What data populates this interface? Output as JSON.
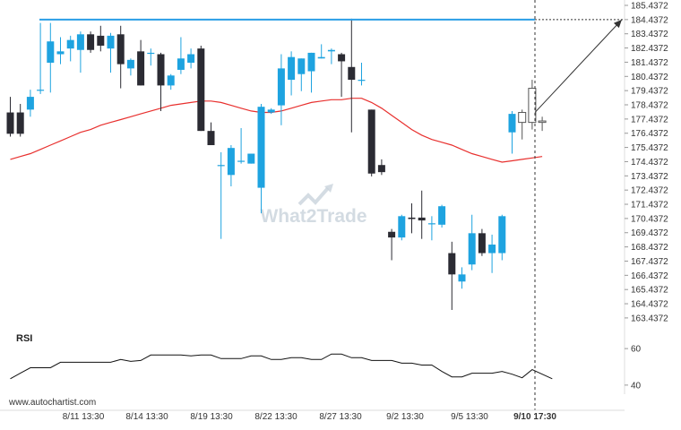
{
  "chart_data": [
    {
      "type": "candlestick",
      "x_labels": [
        "8/11 13:30",
        "8/14 13:30",
        "8/19 13:30",
        "8/22 13:30",
        "8/27 13:30",
        "9/2 13:30",
        "9/5 13:30",
        "9/10 17:30"
      ],
      "y_tick_labels": [
        "185.4372",
        "184.4372",
        "183.4372",
        "182.4372",
        "181.4372",
        "180.4372",
        "179.4372",
        "178.4372",
        "177.4372",
        "176.4372",
        "175.4372",
        "174.4372",
        "173.4372",
        "172.4372",
        "171.4372",
        "170.4372",
        "169.4372",
        "168.4372",
        "167.4372",
        "166.4372",
        "165.4372",
        "164.4372",
        "163.4372"
      ],
      "ylim": [
        162.99,
        185.5
      ],
      "resistance_level": 184.4372,
      "forecast_target": 184.4372,
      "candles": [
        {
          "o": 177.9,
          "h": 179.0,
          "l": 176.2,
          "c": 176.4
        },
        {
          "o": 177.9,
          "h": 178.5,
          "l": 176.2,
          "c": 176.4
        },
        {
          "o": 178.1,
          "h": 179.5,
          "l": 177.6,
          "c": 179.0
        },
        {
          "o": 179.5,
          "h": 184.2,
          "l": 179.2,
          "c": 179.5
        },
        {
          "o": 181.4,
          "h": 184.2,
          "l": 179.3,
          "c": 182.9
        },
        {
          "o": 182.0,
          "h": 183.2,
          "l": 181.3,
          "c": 182.2
        },
        {
          "o": 182.4,
          "h": 183.3,
          "l": 181.5,
          "c": 183.0
        },
        {
          "o": 182.3,
          "h": 183.6,
          "l": 180.7,
          "c": 183.4
        },
        {
          "o": 183.4,
          "h": 183.6,
          "l": 182.1,
          "c": 182.3
        },
        {
          "o": 183.3,
          "h": 184.0,
          "l": 182.2,
          "c": 182.6
        },
        {
          "o": 182.4,
          "h": 183.5,
          "l": 180.7,
          "c": 183.3
        },
        {
          "o": 183.4,
          "h": 184.0,
          "l": 179.6,
          "c": 181.3
        },
        {
          "o": 181.0,
          "h": 181.7,
          "l": 180.5,
          "c": 181.6
        },
        {
          "o": 182.2,
          "h": 183.0,
          "l": 179.8,
          "c": 179.8
        },
        {
          "o": 182.1,
          "h": 182.4,
          "l": 181.2,
          "c": 182.1
        },
        {
          "o": 182.0,
          "h": 182.1,
          "l": 178.0,
          "c": 179.8
        },
        {
          "o": 179.8,
          "h": 180.6,
          "l": 179.5,
          "c": 180.5
        },
        {
          "o": 180.9,
          "h": 183.2,
          "l": 180.6,
          "c": 181.7
        },
        {
          "o": 181.4,
          "h": 182.4,
          "l": 181.0,
          "c": 182.0
        },
        {
          "o": 182.4,
          "h": 182.6,
          "l": 176.6,
          "c": 176.6
        },
        {
          "o": 176.6,
          "h": 177.2,
          "l": 175.6,
          "c": 175.6
        },
        {
          "o": 174.2,
          "h": 175.1,
          "l": 169.0,
          "c": 174.2
        },
        {
          "o": 173.5,
          "h": 175.6,
          "l": 172.7,
          "c": 175.4
        },
        {
          "o": 174.5,
          "h": 176.8,
          "l": 174.3,
          "c": 174.5
        },
        {
          "o": 174.3,
          "h": 175.0,
          "l": 174.3,
          "c": 175.0
        },
        {
          "o": 172.6,
          "h": 178.5,
          "l": 170.8,
          "c": 178.3
        },
        {
          "o": 177.9,
          "h": 178.2,
          "l": 177.8,
          "c": 178.1
        },
        {
          "o": 178.4,
          "h": 182.0,
          "l": 177.0,
          "c": 181.0
        },
        {
          "o": 180.2,
          "h": 182.2,
          "l": 179.1,
          "c": 181.8
        },
        {
          "o": 180.6,
          "h": 181.7,
          "l": 179.4,
          "c": 181.7
        },
        {
          "o": 180.8,
          "h": 182.1,
          "l": 179.3,
          "c": 182.1
        },
        {
          "o": 181.7,
          "h": 182.7,
          "l": 181.7,
          "c": 181.8
        },
        {
          "o": 182.2,
          "h": 182.4,
          "l": 181.3,
          "c": 182.3
        },
        {
          "o": 182.0,
          "h": 182.1,
          "l": 179.0,
          "c": 181.5
        },
        {
          "o": 181.1,
          "h": 184.5,
          "l": 176.5,
          "c": 180.2
        },
        {
          "o": 180.2,
          "h": 181.4,
          "l": 179.8,
          "c": 180.2
        },
        {
          "o": 178.1,
          "h": 178.1,
          "l": 173.4,
          "c": 173.6
        },
        {
          "o": 174.2,
          "h": 174.6,
          "l": 173.5,
          "c": 173.7
        },
        {
          "o": 169.5,
          "h": 169.7,
          "l": 167.5,
          "c": 169.1
        },
        {
          "o": 169.1,
          "h": 170.7,
          "l": 168.9,
          "c": 170.6
        },
        {
          "o": 170.5,
          "h": 171.5,
          "l": 169.4,
          "c": 170.4
        },
        {
          "o": 170.5,
          "h": 172.4,
          "l": 169.0,
          "c": 170.3
        },
        {
          "o": 170.1,
          "h": 170.6,
          "l": 168.9,
          "c": 170.1
        },
        {
          "o": 170.0,
          "h": 171.4,
          "l": 169.8,
          "c": 171.3
        },
        {
          "o": 168.0,
          "h": 168.8,
          "l": 164.0,
          "c": 166.5
        },
        {
          "o": 166.0,
          "h": 167.0,
          "l": 165.5,
          "c": 166.5
        },
        {
          "o": 167.2,
          "h": 170.7,
          "l": 166.8,
          "c": 169.4
        },
        {
          "o": 169.4,
          "h": 169.7,
          "l": 167.8,
          "c": 168.0
        },
        {
          "o": 168.0,
          "h": 169.3,
          "l": 166.6,
          "c": 168.6
        },
        {
          "o": 168.0,
          "h": 170.7,
          "l": 167.5,
          "c": 170.6
        },
        {
          "o": 176.5,
          "h": 178.0,
          "l": 175.0,
          "c": 177.8
        },
        {
          "o": 177.2,
          "h": 178.1,
          "l": 176.0,
          "c": 177.9
        },
        {
          "o": 177.2,
          "h": 180.2,
          "l": 176.7,
          "c": 179.6
        },
        {
          "o": 177.3,
          "h": 177.6,
          "l": 176.6,
          "c": 177.2
        }
      ],
      "moving_average": [
        174.6,
        174.8,
        175.0,
        175.3,
        175.6,
        175.9,
        176.2,
        176.5,
        176.7,
        177.0,
        177.2,
        177.4,
        177.6,
        177.8,
        178.0,
        178.2,
        178.4,
        178.5,
        178.6,
        178.7,
        178.7,
        178.6,
        178.4,
        178.2,
        178.0,
        177.9,
        177.9,
        178.0,
        178.2,
        178.4,
        178.6,
        178.7,
        178.8,
        178.8,
        178.9,
        178.9,
        178.6,
        178.2,
        177.7,
        177.2,
        176.7,
        176.3,
        176.0,
        175.8,
        175.6,
        175.3,
        175.0,
        174.8,
        174.6,
        174.4,
        174.5,
        174.6,
        174.7,
        174.8
      ],
      "colors": {
        "bull": "#1ea3e0",
        "bear": "#2b2b33",
        "moving_average": "#e8302e",
        "resistance": "#2a9ee6",
        "forecast_arrow": "#333333",
        "grid_axis": "#dddddd"
      }
    },
    {
      "type": "line",
      "title": "RSI",
      "y_tick_labels": [
        "60",
        "40"
      ],
      "ylim": [
        37,
        63
      ],
      "values": [
        43.5,
        46.5,
        49.5,
        49.5,
        49.5,
        52.5,
        52.5,
        52.5,
        52.5,
        52.5,
        52.5,
        54.0,
        53.0,
        53.5,
        56.5,
        56.5,
        56.5,
        56.5,
        56.0,
        56.5,
        56.5,
        54.5,
        54.5,
        54.5,
        56.0,
        56.0,
        54.0,
        54.0,
        55.0,
        55.0,
        54.0,
        54.0,
        57.0,
        57.0,
        55.0,
        55.0,
        53.5,
        53.5,
        53.5,
        52.0,
        52.0,
        51.0,
        51.0,
        47.5,
        44.5,
        44.5,
        46.5,
        46.5,
        46.5,
        47.5,
        46.0,
        44.0,
        48.5,
        46.0,
        43.5
      ]
    }
  ],
  "footer": {
    "source_url": "www.autochartist.com"
  },
  "watermark": {
    "text": "What2Trade"
  }
}
